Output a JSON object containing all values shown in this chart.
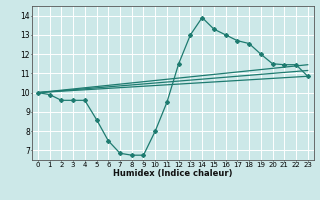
{
  "xlabel": "Humidex (Indice chaleur)",
  "bg_color": "#cce8e8",
  "plot_bg": "#cce8e8",
  "grid_color": "#ffffff",
  "line_color": "#1e7b70",
  "spine_color": "#555555",
  "xlim": [
    -0.5,
    23.5
  ],
  "ylim": [
    6.5,
    14.5
  ],
  "xticks": [
    0,
    1,
    2,
    3,
    4,
    5,
    6,
    7,
    8,
    9,
    10,
    11,
    12,
    13,
    14,
    15,
    16,
    17,
    18,
    19,
    20,
    21,
    22,
    23
  ],
  "yticks": [
    7,
    8,
    9,
    10,
    11,
    12,
    13,
    14
  ],
  "curve1_x": [
    0,
    1,
    2,
    3,
    4,
    5,
    6,
    7,
    8,
    9,
    10,
    11,
    12,
    13,
    14,
    15,
    16,
    17,
    18,
    19,
    20,
    21,
    22,
    23
  ],
  "curve1_y": [
    10.0,
    9.9,
    9.6,
    9.6,
    9.6,
    8.6,
    7.5,
    6.85,
    6.75,
    6.75,
    8.0,
    9.5,
    11.5,
    13.0,
    13.9,
    13.3,
    13.0,
    12.7,
    12.55,
    12.0,
    11.5,
    11.45,
    11.45,
    10.85
  ],
  "line2_x": [
    0,
    23
  ],
  "line2_y": [
    10.0,
    11.45
  ],
  "line3_x": [
    0,
    23
  ],
  "line3_y": [
    10.0,
    11.15
  ],
  "line4_x": [
    0,
    23
  ],
  "line4_y": [
    10.0,
    10.85
  ]
}
